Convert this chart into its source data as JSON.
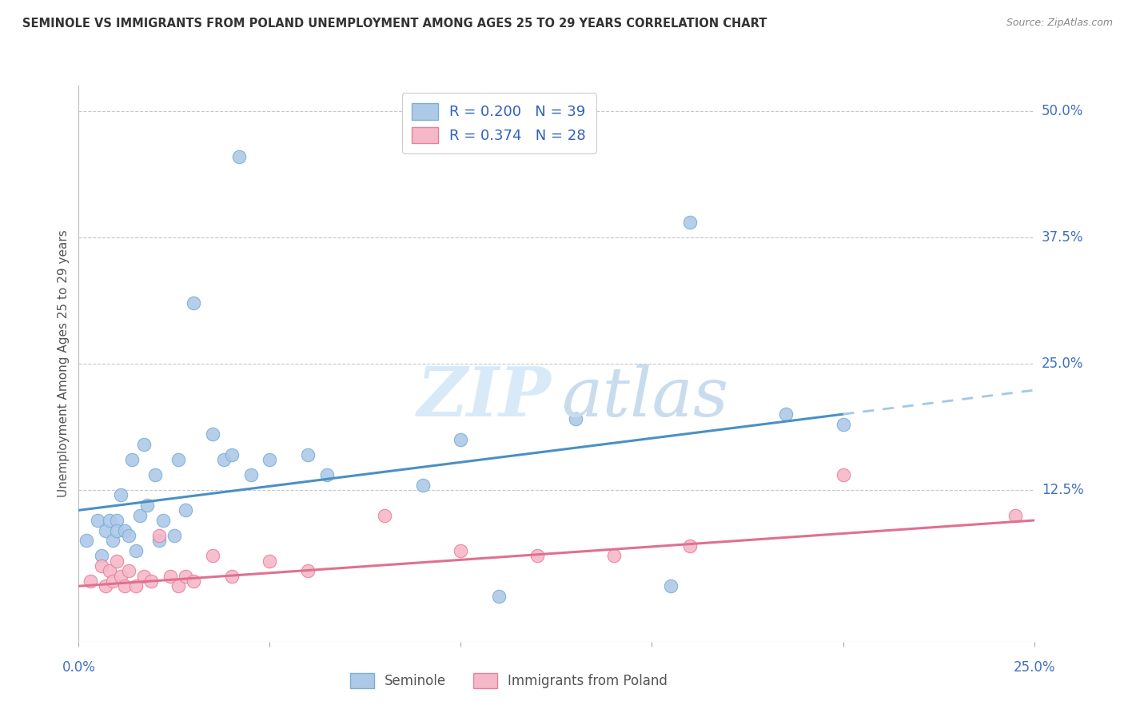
{
  "title": "SEMINOLE VS IMMIGRANTS FROM POLAND UNEMPLOYMENT AMONG AGES 25 TO 29 YEARS CORRELATION CHART",
  "source": "Source: ZipAtlas.com",
  "ylabel": "Unemployment Among Ages 25 to 29 years",
  "legend_label_1": "Seminole",
  "legend_label_2": "Immigrants from Poland",
  "R1": "0.200",
  "N1": "39",
  "R2": "0.374",
  "N2": "28",
  "color_blue": "#aec9e8",
  "color_pink": "#f5b8c8",
  "color_blue_edge": "#7aafd4",
  "color_pink_edge": "#e8809a",
  "color_blue_line": "#4a90c4",
  "color_pink_line": "#e07090",
  "color_dashed": "#a0c8e8",
  "xmin": 0.0,
  "xmax": 0.25,
  "ymin": -0.025,
  "ymax": 0.525,
  "seminole_x": [
    0.002,
    0.005,
    0.006,
    0.007,
    0.008,
    0.009,
    0.01,
    0.01,
    0.011,
    0.012,
    0.013,
    0.014,
    0.015,
    0.016,
    0.017,
    0.018,
    0.02,
    0.021,
    0.022,
    0.025,
    0.026,
    0.028,
    0.03,
    0.035,
    0.038,
    0.04,
    0.042,
    0.045,
    0.05,
    0.06,
    0.065,
    0.09,
    0.1,
    0.11,
    0.13,
    0.155,
    0.16,
    0.185,
    0.2
  ],
  "seminole_y": [
    0.075,
    0.095,
    0.06,
    0.085,
    0.095,
    0.075,
    0.095,
    0.085,
    0.12,
    0.085,
    0.08,
    0.155,
    0.065,
    0.1,
    0.17,
    0.11,
    0.14,
    0.075,
    0.095,
    0.08,
    0.155,
    0.105,
    0.31,
    0.18,
    0.155,
    0.16,
    0.455,
    0.14,
    0.155,
    0.16,
    0.14,
    0.13,
    0.175,
    0.02,
    0.195,
    0.03,
    0.39,
    0.2,
    0.19
  ],
  "poland_x": [
    0.003,
    0.006,
    0.007,
    0.008,
    0.009,
    0.01,
    0.011,
    0.012,
    0.013,
    0.015,
    0.017,
    0.019,
    0.021,
    0.024,
    0.026,
    0.028,
    0.03,
    0.035,
    0.04,
    0.05,
    0.06,
    0.08,
    0.1,
    0.12,
    0.14,
    0.16,
    0.2,
    0.245
  ],
  "poland_y": [
    0.035,
    0.05,
    0.03,
    0.045,
    0.035,
    0.055,
    0.04,
    0.03,
    0.045,
    0.03,
    0.04,
    0.035,
    0.08,
    0.04,
    0.03,
    0.04,
    0.035,
    0.06,
    0.04,
    0.055,
    0.045,
    0.1,
    0.065,
    0.06,
    0.06,
    0.07,
    0.14,
    0.1
  ],
  "background_color": "#ffffff",
  "grid_color": "#c8c8c8"
}
